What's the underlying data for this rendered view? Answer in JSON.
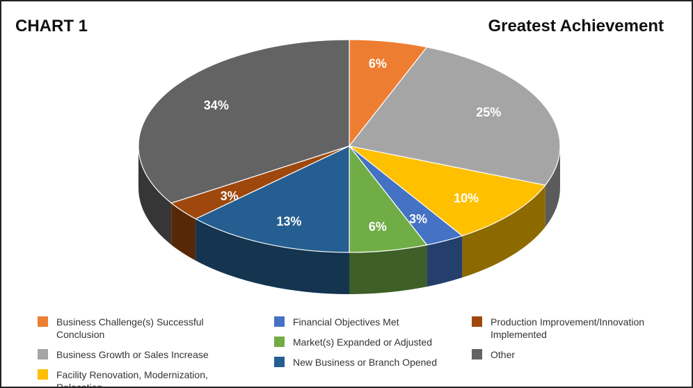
{
  "chart_data": {
    "type": "pie",
    "chart_label": "CHART 1",
    "title": "Greatest Achievement",
    "categories": [
      "Business Challenge(s) Successful Conclusion",
      "Business Growth or Sales Increase",
      "Facility Renovation, Modernization, Relocation",
      "Financial Objectives Met",
      "Market(s) Expanded or Adjusted",
      "New Business or Branch Opened",
      "Production Improvement/Innovation Implemented",
      "Other"
    ],
    "values": [
      6,
      25,
      10,
      3,
      6,
      13,
      3,
      34
    ],
    "value_labels": [
      "6%",
      "25%",
      "10%",
      "3%",
      "6%",
      "13%",
      "3%",
      "34%"
    ],
    "colors": [
      "#ed7d31",
      "#a5a5a5",
      "#ffc000",
      "#4472c4",
      "#70ad47",
      "#255e91",
      "#9e480e",
      "#636363"
    ],
    "legend": "bottom"
  }
}
